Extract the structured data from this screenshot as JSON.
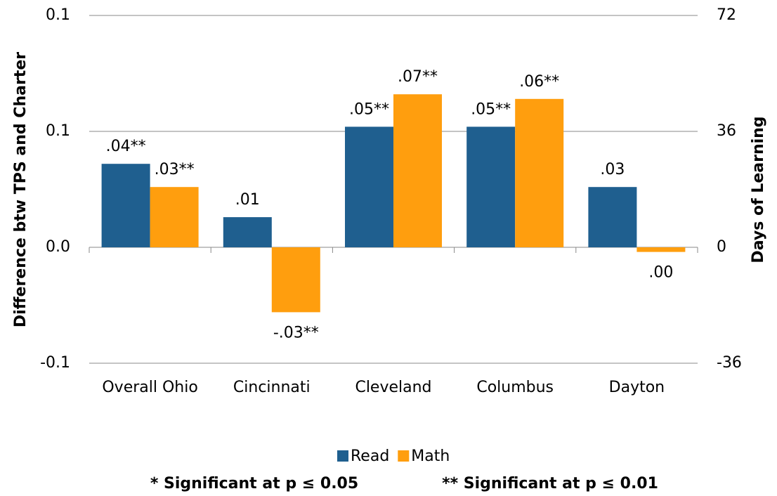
{
  "chart_data": {
    "type": "bar",
    "categories": [
      "Overall Ohio",
      "Cincinnati",
      "Cleveland",
      "Columbus",
      "Dayton"
    ],
    "series": [
      {
        "name": "Read",
        "color": "#1f5f8f",
        "values": [
          0.036,
          0.013,
          0.052,
          0.052,
          0.026
        ],
        "value_labels": [
          ".04**",
          ".01",
          ".05**",
          ".05**",
          ".03"
        ]
      },
      {
        "name": "Math",
        "color": "#ff9e0e",
        "values": [
          0.026,
          -0.028,
          0.066,
          0.064,
          -0.002
        ],
        "value_labels": [
          ".03**",
          "-.03**",
          ".07**",
          ".06**",
          ".00"
        ]
      }
    ],
    "ylabel": "Difference btw TPS and Charter",
    "y2label": "Days of Learning",
    "ylim": [
      -0.05,
      0.1
    ],
    "yticks": [
      0.1,
      {
        "value": 0.05,
        "label": "0.1"
      },
      {
        "value": 0,
        "label": "0.0"
      },
      {
        "value": -0.05,
        "label": "-0.1"
      }
    ],
    "y2lim": [
      -36,
      72
    ],
    "y2ticks": [
      72,
      36,
      0,
      -36
    ],
    "grid": true,
    "legend": "bottom",
    "footnotes": [
      "* Significant at p ≤ 0.05",
      "** Significant at p ≤ 0.01"
    ]
  }
}
